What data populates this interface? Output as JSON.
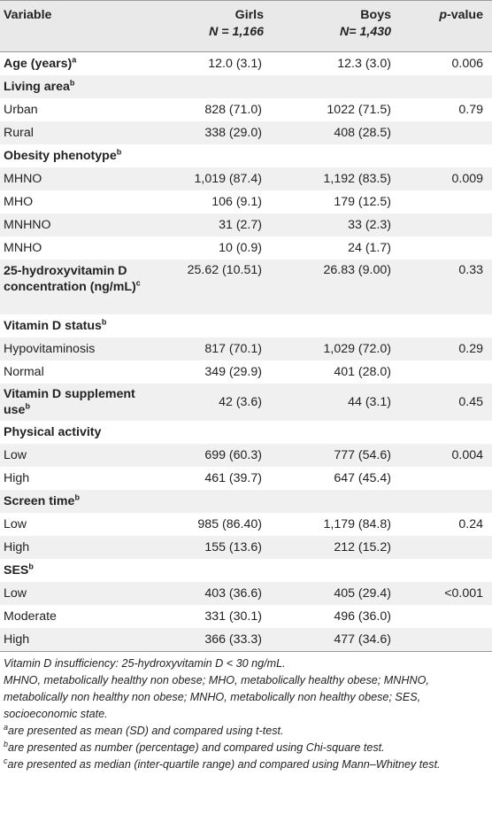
{
  "header": {
    "variable": "Variable",
    "girls": "Girls",
    "girls_n": "N = 1,166",
    "boys": "Boys",
    "boys_n": "N= 1,430",
    "p_value_italic": "p",
    "p_value_rest": "-value"
  },
  "rows": [
    {
      "label": "Age (years)",
      "sup": "a",
      "bold": true,
      "girls": "12.0 (3.1)",
      "boys": "12.3 (3.0)",
      "p": "0.006"
    },
    {
      "label": "Living area",
      "sup": "b",
      "bold": true,
      "girls": "",
      "boys": "",
      "p": ""
    },
    {
      "label": "Urban",
      "sup": "",
      "bold": false,
      "girls": "828 (71.0)",
      "boys": "1022 (71.5)",
      "p": "0.79"
    },
    {
      "label": "Rural",
      "sup": "",
      "bold": false,
      "girls": "338 (29.0)",
      "boys": "408 (28.5)",
      "p": ""
    },
    {
      "label": "Obesity phenotype",
      "sup": "b",
      "bold": true,
      "girls": "",
      "boys": "",
      "p": ""
    },
    {
      "label": "MHNO",
      "sup": "",
      "bold": false,
      "girls": "1,019 (87.4)",
      "boys": "1,192 (83.5)",
      "p": "0.009"
    },
    {
      "label": "MHO",
      "sup": "",
      "bold": false,
      "girls": "106 (9.1)",
      "boys": "179 (12.5)",
      "p": ""
    },
    {
      "label": "MNHNO",
      "sup": "",
      "bold": false,
      "girls": "31 (2.7)",
      "boys": "33 (2.3)",
      "p": ""
    },
    {
      "label": "MNHO",
      "sup": "",
      "bold": false,
      "girls": "10 (0.9)",
      "boys": "24 (1.7)",
      "p": ""
    },
    {
      "label": "25-hydroxyvitamin D concentration (ng/mL)",
      "sup": "c",
      "bold": true,
      "girls": "25.62 (10.51)",
      "boys": "26.83 (9.00)",
      "p": "0.33"
    },
    {
      "label": "Vitamin D status",
      "sup": "b",
      "bold": true,
      "girls": "",
      "boys": "",
      "p": ""
    },
    {
      "label": "Hypovitaminosis",
      "sup": "",
      "bold": false,
      "girls": "817 (70.1)",
      "boys": "1,029 (72.0)",
      "p": "0.29"
    },
    {
      "label": "Normal",
      "sup": "",
      "bold": false,
      "girls": "349 (29.9)",
      "boys": "401 (28.0)",
      "p": ""
    },
    {
      "label": "Vitamin D supplement use",
      "sup": "b",
      "bold": true,
      "girls": "42 (3.6)",
      "boys": "44 (3.1)",
      "p": "0.45"
    },
    {
      "label": "Physical activity",
      "sup": "",
      "bold": true,
      "girls": "",
      "boys": "",
      "p": ""
    },
    {
      "label": "Low",
      "sup": "",
      "bold": false,
      "girls": "699 (60.3)",
      "boys": "777 (54.6)",
      "p": "0.004"
    },
    {
      "label": "High",
      "sup": "",
      "bold": false,
      "girls": "461 (39.7)",
      "boys": "647 (45.4)",
      "p": ""
    },
    {
      "label": "Screen time",
      "sup": "b",
      "bold": true,
      "girls": "",
      "boys": "",
      "p": ""
    },
    {
      "label": "Low",
      "sup": "",
      "bold": false,
      "girls": "985 (86.40)",
      "boys": "1,179 (84.8)",
      "p": "0.24"
    },
    {
      "label": "High",
      "sup": "",
      "bold": false,
      "girls": "155 (13.6)",
      "boys": "212 (15.2)",
      "p": ""
    },
    {
      "label": "SES",
      "sup": "b",
      "bold": true,
      "girls": "",
      "boys": "",
      "p": ""
    },
    {
      "label": "Low",
      "sup": "",
      "bold": false,
      "girls": "403 (36.6)",
      "boys": "405 (29.4)",
      "p": "<0.001"
    },
    {
      "label": "Moderate",
      "sup": "",
      "bold": false,
      "girls": "331 (30.1)",
      "boys": "496 (36.0)",
      "p": ""
    },
    {
      "label": "High",
      "sup": "",
      "bold": false,
      "girls": "366 (33.3)",
      "boys": "477 (34.6)",
      "p": ""
    }
  ],
  "notes": {
    "insufficiency": "Vitamin D insufficiency: 25-hydroxyvitamin D < 30 ng/mL.",
    "abbreviations": "MHNO, metabolically healthy non obese; MHO, metabolically healthy obese; MNHNO, metabolically non healthy non obese; MNHO, metabolically non healthy obese; SES, socioeconomic state.",
    "footnotes": [
      {
        "mark": "a",
        "text": "are presented as mean (SD) and compared using t-test."
      },
      {
        "mark": "b",
        "text": "are presented as number (percentage) and compared using Chi-square test."
      },
      {
        "mark": "c",
        "text": "are presented as median (inter-quartile range) and compared using Mann–Whitney test."
      }
    ]
  }
}
